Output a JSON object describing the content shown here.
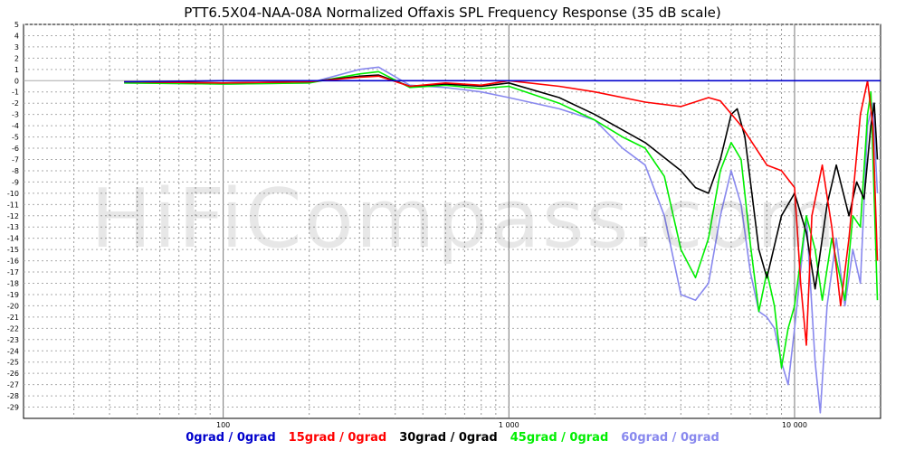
{
  "chart_data": {
    "type": "line",
    "title": "PTT6.5X04-NAA-08A Normalized Offaxis SPL Frequency Response (35 dB scale)",
    "xlabel": "",
    "ylabel": "",
    "x_scale": "log",
    "xlim": [
      20,
      20000
    ],
    "ylim": [
      -30,
      5
    ],
    "y_ticks": [
      5,
      4,
      3,
      2,
      1,
      0,
      -1,
      -2,
      -3,
      -4,
      -5,
      -6,
      -7,
      -8,
      -9,
      -10,
      -11,
      -12,
      -13,
      -14,
      -15,
      -16,
      -17,
      -18,
      -19,
      -20,
      -21,
      -22,
      -23,
      -24,
      -25,
      -26,
      -27,
      -28,
      -29
    ],
    "x_tick_labels": [
      {
        "value": 100,
        "label": "100"
      },
      {
        "value": 1000,
        "label": "1 000"
      },
      {
        "value": 10000,
        "label": "10 000"
      }
    ],
    "grid": true,
    "legend_position": "bottom",
    "watermark": "HiFiCompass.com",
    "series": [
      {
        "name": "0grad / 0grad",
        "color": "#0000cc",
        "points": [
          [
            45,
            -0.1
          ],
          [
            100,
            0
          ],
          [
            300,
            0
          ],
          [
            1000,
            0
          ],
          [
            3000,
            0
          ],
          [
            10000,
            0
          ],
          [
            20000,
            0
          ]
        ]
      },
      {
        "name": "15grad / 0grad",
        "color": "#ff0000",
        "points": [
          [
            45,
            -0.1
          ],
          [
            100,
            -0.2
          ],
          [
            200,
            -0.1
          ],
          [
            300,
            0.3
          ],
          [
            350,
            0.4
          ],
          [
            450,
            -0.5
          ],
          [
            600,
            -0.2
          ],
          [
            800,
            -0.4
          ],
          [
            1000,
            0
          ],
          [
            1500,
            -0.5
          ],
          [
            2000,
            -1
          ],
          [
            3000,
            -1.9
          ],
          [
            4000,
            -2.3
          ],
          [
            5000,
            -1.5
          ],
          [
            5500,
            -1.8
          ],
          [
            6500,
            -4
          ],
          [
            8000,
            -7.5
          ],
          [
            9000,
            -8
          ],
          [
            10000,
            -9.5
          ],
          [
            10500,
            -18
          ],
          [
            11000,
            -23.5
          ],
          [
            11500,
            -12
          ],
          [
            12500,
            -7.5
          ],
          [
            13500,
            -13
          ],
          [
            14500,
            -20
          ],
          [
            15500,
            -14
          ],
          [
            17000,
            -3
          ],
          [
            18000,
            0
          ],
          [
            18800,
            -4
          ],
          [
            19500,
            -16
          ]
        ]
      },
      {
        "name": "30grad / 0grad",
        "color": "#000000",
        "points": [
          [
            45,
            -0.1
          ],
          [
            100,
            -0.2
          ],
          [
            200,
            -0.1
          ],
          [
            300,
            0.4
          ],
          [
            350,
            0.5
          ],
          [
            450,
            -0.5
          ],
          [
            600,
            -0.3
          ],
          [
            800,
            -0.5
          ],
          [
            1000,
            -0.2
          ],
          [
            1500,
            -1.5
          ],
          [
            2000,
            -3
          ],
          [
            3000,
            -5.5
          ],
          [
            4000,
            -8
          ],
          [
            4500,
            -9.5
          ],
          [
            5000,
            -10
          ],
          [
            5500,
            -7
          ],
          [
            6000,
            -3
          ],
          [
            6300,
            -2.5
          ],
          [
            6700,
            -5
          ],
          [
            7500,
            -15
          ],
          [
            8000,
            -17.5
          ],
          [
            9000,
            -12
          ],
          [
            10000,
            -10
          ],
          [
            11000,
            -13.5
          ],
          [
            11800,
            -18.5
          ],
          [
            13000,
            -11
          ],
          [
            14000,
            -7.5
          ],
          [
            15500,
            -12
          ],
          [
            16500,
            -9
          ],
          [
            17500,
            -10.5
          ],
          [
            18500,
            -4
          ],
          [
            19000,
            -2
          ],
          [
            19500,
            -7
          ]
        ]
      },
      {
        "name": "45grad / 0grad",
        "color": "#00ee00",
        "points": [
          [
            45,
            -0.2
          ],
          [
            100,
            -0.3
          ],
          [
            200,
            -0.2
          ],
          [
            300,
            0.6
          ],
          [
            350,
            0.8
          ],
          [
            450,
            -0.6
          ],
          [
            600,
            -0.4
          ],
          [
            800,
            -0.7
          ],
          [
            1000,
            -0.5
          ],
          [
            1500,
            -2
          ],
          [
            2000,
            -3.5
          ],
          [
            2500,
            -5
          ],
          [
            3000,
            -6
          ],
          [
            3500,
            -8.5
          ],
          [
            4000,
            -15
          ],
          [
            4500,
            -17.5
          ],
          [
            5000,
            -14
          ],
          [
            5500,
            -8
          ],
          [
            6000,
            -5.5
          ],
          [
            6500,
            -7
          ],
          [
            7000,
            -14.5
          ],
          [
            7500,
            -20.5
          ],
          [
            8000,
            -17
          ],
          [
            8500,
            -20
          ],
          [
            9000,
            -25.5
          ],
          [
            9500,
            -22
          ],
          [
            10000,
            -20
          ],
          [
            11000,
            -12
          ],
          [
            11800,
            -15
          ],
          [
            12500,
            -19.5
          ],
          [
            13500,
            -14
          ],
          [
            15000,
            -19.5
          ],
          [
            16000,
            -12
          ],
          [
            17000,
            -13
          ],
          [
            18000,
            -3
          ],
          [
            18500,
            -1
          ],
          [
            19500,
            -19.5
          ]
        ]
      },
      {
        "name": "60grad / 0grad",
        "color": "#8888ee",
        "points": [
          [
            45,
            -0.2
          ],
          [
            100,
            -0.3
          ],
          [
            200,
            -0.2
          ],
          [
            300,
            1
          ],
          [
            350,
            1.2
          ],
          [
            450,
            -0.4
          ],
          [
            600,
            -0.6
          ],
          [
            800,
            -1
          ],
          [
            1000,
            -1.5
          ],
          [
            1500,
            -2.5
          ],
          [
            2000,
            -3.5
          ],
          [
            2500,
            -6
          ],
          [
            3000,
            -7.5
          ],
          [
            3500,
            -12
          ],
          [
            4000,
            -19
          ],
          [
            4500,
            -19.5
          ],
          [
            5000,
            -18
          ],
          [
            5500,
            -12
          ],
          [
            6000,
            -8
          ],
          [
            6500,
            -11
          ],
          [
            7000,
            -17
          ],
          [
            7500,
            -20.5
          ],
          [
            8000,
            -21
          ],
          [
            8500,
            -22
          ],
          [
            9000,
            -25
          ],
          [
            9500,
            -27
          ],
          [
            10000,
            -22
          ],
          [
            11000,
            -12
          ],
          [
            11800,
            -25
          ],
          [
            12300,
            -29.5
          ],
          [
            13000,
            -20
          ],
          [
            14000,
            -14
          ],
          [
            15000,
            -20
          ],
          [
            16000,
            -15
          ],
          [
            17000,
            -18
          ],
          [
            18000,
            -4
          ],
          [
            18800,
            -2
          ],
          [
            19500,
            -10
          ]
        ]
      }
    ]
  }
}
